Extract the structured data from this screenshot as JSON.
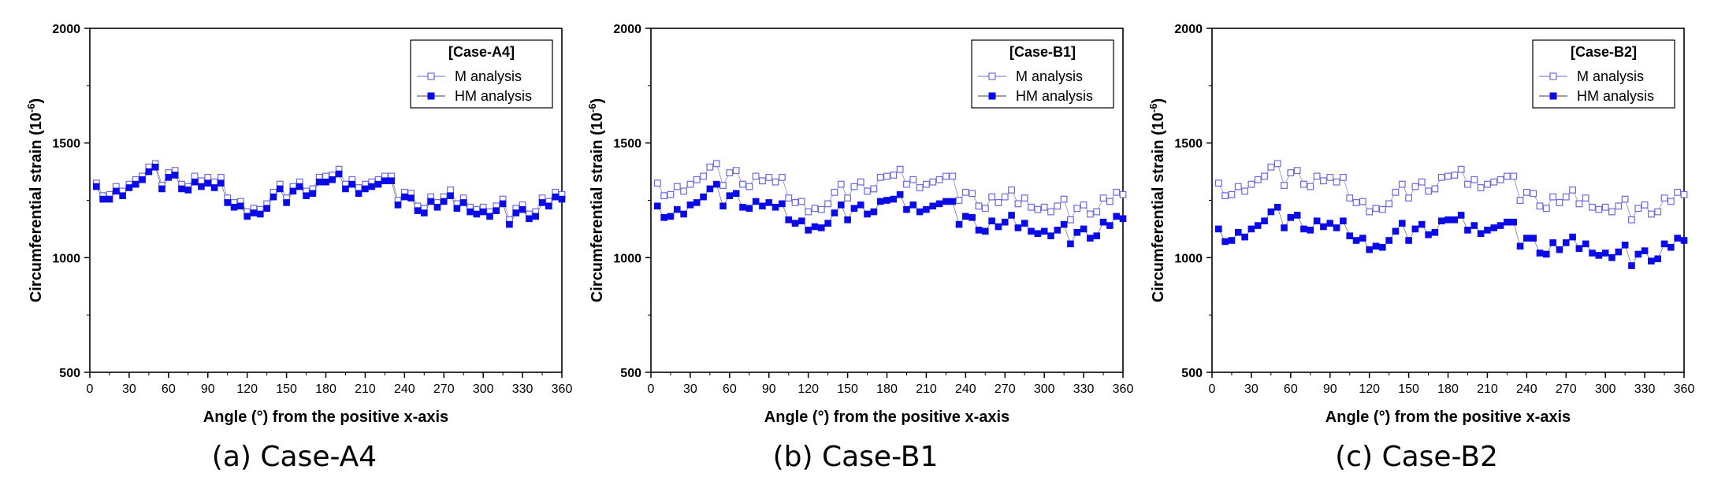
{
  "chart_data": [
    {
      "type": "scatter",
      "caption": "(a) Case-A4",
      "legend_title": "[Case-A4]",
      "xlabel": "Angle (°) from the positive x-axis",
      "ylabel": "Circumferential strain (10",
      "ylabel_sup": "-6",
      "ylabel_close": ")",
      "xlim": [
        0,
        360
      ],
      "ylim": [
        500,
        2000
      ],
      "xticks": [
        0,
        30,
        60,
        90,
        120,
        150,
        180,
        210,
        240,
        270,
        300,
        330,
        360
      ],
      "yticks": [
        500,
        1000,
        1500,
        2000
      ],
      "legend_position": "top-right",
      "x": [
        5,
        10,
        15,
        20,
        25,
        30,
        35,
        40,
        45,
        50,
        55,
        60,
        65,
        70,
        75,
        80,
        85,
        90,
        95,
        100,
        105,
        110,
        115,
        120,
        125,
        130,
        135,
        140,
        145,
        150,
        155,
        160,
        165,
        170,
        175,
        180,
        185,
        190,
        195,
        200,
        205,
        210,
        215,
        220,
        225,
        230,
        235,
        240,
        245,
        250,
        255,
        260,
        265,
        270,
        275,
        280,
        285,
        290,
        295,
        300,
        305,
        310,
        315,
        320,
        325,
        330,
        335,
        340,
        345,
        350,
        355,
        360
      ],
      "series": [
        {
          "name": "M analysis",
          "marker": "open-square",
          "values": [
            1325,
            1270,
            1275,
            1310,
            1290,
            1320,
            1340,
            1355,
            1395,
            1410,
            1315,
            1370,
            1380,
            1320,
            1310,
            1355,
            1335,
            1350,
            1330,
            1350,
            1260,
            1240,
            1245,
            1200,
            1215,
            1210,
            1235,
            1285,
            1320,
            1260,
            1310,
            1330,
            1290,
            1300,
            1350,
            1355,
            1360,
            1385,
            1320,
            1340,
            1305,
            1320,
            1330,
            1340,
            1355,
            1355,
            1250,
            1285,
            1280,
            1225,
            1215,
            1265,
            1240,
            1265,
            1295,
            1235,
            1260,
            1220,
            1210,
            1220,
            1200,
            1225,
            1255,
            1165,
            1215,
            1230,
            1190,
            1200,
            1260,
            1245,
            1285,
            1275
          ]
        },
        {
          "name": "HM analysis",
          "marker": "filled-square",
          "values": [
            1310,
            1255,
            1255,
            1290,
            1270,
            1305,
            1320,
            1340,
            1375,
            1395,
            1300,
            1350,
            1360,
            1300,
            1295,
            1330,
            1310,
            1325,
            1305,
            1325,
            1240,
            1220,
            1225,
            1180,
            1195,
            1190,
            1215,
            1265,
            1300,
            1240,
            1290,
            1310,
            1270,
            1280,
            1330,
            1330,
            1340,
            1365,
            1300,
            1320,
            1280,
            1300,
            1310,
            1320,
            1335,
            1335,
            1230,
            1265,
            1260,
            1205,
            1195,
            1245,
            1220,
            1245,
            1270,
            1215,
            1240,
            1200,
            1190,
            1200,
            1180,
            1205,
            1235,
            1145,
            1195,
            1210,
            1170,
            1180,
            1240,
            1225,
            1265,
            1255
          ]
        }
      ]
    },
    {
      "type": "scatter",
      "caption": "(b) Case-B1",
      "legend_title": "[Case-B1]",
      "xlabel": "Angle (°) from the positive x-axis",
      "ylabel": "Circumferential strain (10",
      "ylabel_sup": "-6",
      "ylabel_close": ")",
      "xlim": [
        0,
        360
      ],
      "ylim": [
        500,
        2000
      ],
      "xticks": [
        0,
        30,
        60,
        90,
        120,
        150,
        180,
        210,
        240,
        270,
        300,
        330,
        360
      ],
      "yticks": [
        500,
        1000,
        1500,
        2000
      ],
      "legend_position": "top-right",
      "x": [
        5,
        10,
        15,
        20,
        25,
        30,
        35,
        40,
        45,
        50,
        55,
        60,
        65,
        70,
        75,
        80,
        85,
        90,
        95,
        100,
        105,
        110,
        115,
        120,
        125,
        130,
        135,
        140,
        145,
        150,
        155,
        160,
        165,
        170,
        175,
        180,
        185,
        190,
        195,
        200,
        205,
        210,
        215,
        220,
        225,
        230,
        235,
        240,
        245,
        250,
        255,
        260,
        265,
        270,
        275,
        280,
        285,
        290,
        295,
        300,
        305,
        310,
        315,
        320,
        325,
        330,
        335,
        340,
        345,
        350,
        355,
        360
      ],
      "series": [
        {
          "name": "M analysis",
          "marker": "open-square",
          "values": [
            1325,
            1270,
            1275,
            1310,
            1290,
            1320,
            1340,
            1355,
            1395,
            1410,
            1315,
            1370,
            1380,
            1320,
            1310,
            1355,
            1335,
            1350,
            1330,
            1350,
            1260,
            1240,
            1245,
            1200,
            1215,
            1210,
            1235,
            1285,
            1320,
            1260,
            1310,
            1330,
            1290,
            1300,
            1350,
            1355,
            1360,
            1385,
            1320,
            1340,
            1305,
            1320,
            1330,
            1340,
            1355,
            1355,
            1250,
            1285,
            1280,
            1225,
            1215,
            1265,
            1240,
            1265,
            1295,
            1235,
            1260,
            1220,
            1210,
            1220,
            1200,
            1225,
            1255,
            1165,
            1215,
            1230,
            1190,
            1200,
            1260,
            1245,
            1285,
            1275
          ]
        },
        {
          "name": "HM analysis",
          "marker": "filled-square",
          "values": [
            1225,
            1175,
            1180,
            1210,
            1190,
            1230,
            1240,
            1265,
            1300,
            1320,
            1225,
            1270,
            1280,
            1220,
            1215,
            1245,
            1225,
            1240,
            1220,
            1235,
            1165,
            1150,
            1160,
            1120,
            1135,
            1130,
            1150,
            1195,
            1230,
            1165,
            1215,
            1230,
            1190,
            1200,
            1245,
            1250,
            1255,
            1275,
            1210,
            1230,
            1200,
            1210,
            1225,
            1235,
            1245,
            1245,
            1145,
            1180,
            1175,
            1120,
            1115,
            1160,
            1135,
            1155,
            1185,
            1130,
            1150,
            1115,
            1105,
            1115,
            1095,
            1120,
            1145,
            1060,
            1110,
            1125,
            1085,
            1095,
            1155,
            1140,
            1180,
            1170
          ]
        }
      ]
    },
    {
      "type": "scatter",
      "caption": "(c) Case-B2",
      "legend_title": "[Case-B2]",
      "xlabel": "Angle (°) from the positive x-axis",
      "ylabel": "Circumferential strain (10",
      "ylabel_sup": "-6",
      "ylabel_close": ")",
      "xlim": [
        0,
        360
      ],
      "ylim": [
        500,
        2000
      ],
      "xticks": [
        0,
        30,
        60,
        90,
        120,
        150,
        180,
        210,
        240,
        270,
        300,
        330,
        360
      ],
      "yticks": [
        500,
        1000,
        1500,
        2000
      ],
      "legend_position": "top-right",
      "x": [
        5,
        10,
        15,
        20,
        25,
        30,
        35,
        40,
        45,
        50,
        55,
        60,
        65,
        70,
        75,
        80,
        85,
        90,
        95,
        100,
        105,
        110,
        115,
        120,
        125,
        130,
        135,
        140,
        145,
        150,
        155,
        160,
        165,
        170,
        175,
        180,
        185,
        190,
        195,
        200,
        205,
        210,
        215,
        220,
        225,
        230,
        235,
        240,
        245,
        250,
        255,
        260,
        265,
        270,
        275,
        280,
        285,
        290,
        295,
        300,
        305,
        310,
        315,
        320,
        325,
        330,
        335,
        340,
        345,
        350,
        355,
        360
      ],
      "series": [
        {
          "name": "M analysis",
          "marker": "open-square",
          "values": [
            1325,
            1270,
            1275,
            1310,
            1290,
            1320,
            1340,
            1355,
            1395,
            1410,
            1315,
            1370,
            1380,
            1320,
            1310,
            1355,
            1335,
            1350,
            1330,
            1350,
            1260,
            1240,
            1245,
            1200,
            1215,
            1210,
            1235,
            1285,
            1320,
            1260,
            1310,
            1330,
            1290,
            1300,
            1350,
            1355,
            1360,
            1385,
            1320,
            1340,
            1305,
            1320,
            1330,
            1340,
            1355,
            1355,
            1250,
            1285,
            1280,
            1225,
            1215,
            1265,
            1240,
            1265,
            1295,
            1235,
            1260,
            1220,
            1210,
            1220,
            1200,
            1225,
            1255,
            1165,
            1215,
            1230,
            1190,
            1200,
            1260,
            1245,
            1285,
            1275
          ]
        },
        {
          "name": "HM analysis",
          "marker": "filled-square",
          "values": [
            1125,
            1070,
            1075,
            1110,
            1090,
            1125,
            1140,
            1160,
            1200,
            1220,
            1130,
            1175,
            1185,
            1125,
            1120,
            1160,
            1135,
            1150,
            1130,
            1160,
            1095,
            1075,
            1085,
            1035,
            1050,
            1045,
            1075,
            1115,
            1150,
            1075,
            1125,
            1145,
            1100,
            1110,
            1160,
            1165,
            1165,
            1185,
            1120,
            1140,
            1105,
            1120,
            1130,
            1140,
            1155,
            1155,
            1050,
            1085,
            1085,
            1020,
            1015,
            1065,
            1035,
            1065,
            1090,
            1040,
            1060,
            1020,
            1010,
            1020,
            1000,
            1025,
            1055,
            965,
            1015,
            1030,
            985,
            995,
            1060,
            1045,
            1085,
            1075
          ]
        }
      ]
    }
  ],
  "colors": {
    "m_analysis": "#6a6ad8",
    "hm_analysis": "#0a0ae6",
    "axis": "#000000"
  }
}
